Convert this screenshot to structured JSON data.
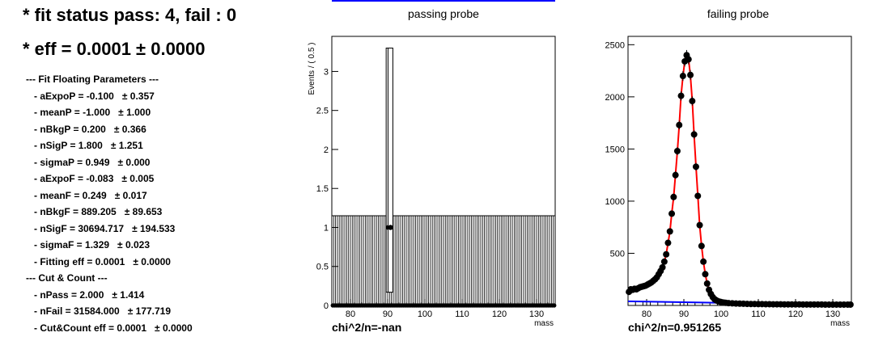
{
  "status_line": "* fit status pass: 4, fail : 0",
  "eff_line": "* eff = 0.0001  ± 0.0000",
  "fit_header": "--- Fit Floating Parameters ---",
  "fit_params": [
    {
      "label": "- aExpoP = -0.100",
      "err": "± 0.357"
    },
    {
      "label": "- meanP = -1.000",
      "err": "± 1.000"
    },
    {
      "label": "- nBkgP = 0.200",
      "err": "± 0.366"
    },
    {
      "label": "- nSigP = 1.800",
      "err": "± 1.251"
    },
    {
      "label": "- sigmaP = 0.949",
      "err": "± 0.000"
    },
    {
      "label": "- aExpoF = -0.083",
      "err": "± 0.005"
    },
    {
      "label": "- meanF = 0.249",
      "err": "± 0.017"
    },
    {
      "label": "- nBkgF = 889.205",
      "err": "± 89.653"
    },
    {
      "label": "- nSigF = 30694.717",
      "err": "± 194.533"
    },
    {
      "label": "- sigmaF = 1.329",
      "err": "± 0.023"
    },
    {
      "label": "- Fitting eff = 0.0001",
      "err": "± 0.0000"
    }
  ],
  "cc_header": "--- Cut & Count ---",
  "cc_params": [
    {
      "label": "- nPass = 2.000",
      "err": "± 1.414"
    },
    {
      "label": "- nFail = 31584.000",
      "err": "± 177.719"
    },
    {
      "label": "- Cut&Count eff = 0.0001",
      "err": "± 0.0000"
    }
  ],
  "chart_data": [
    {
      "type": "histogram",
      "title": "passing probe",
      "ylabel": "Events / ( 0.5 )",
      "xlabel": "mass",
      "chi_label": "chi^2/n=-nan",
      "xlim": [
        75,
        135
      ],
      "ylim": [
        0,
        3.45
      ],
      "x_ticks": [
        80,
        90,
        100,
        110,
        120,
        130
      ],
      "y_ticks": [
        0,
        0.5,
        1,
        1.5,
        2,
        2.5,
        3
      ],
      "y_tick_labels": [
        "0",
        "0.5",
        "1",
        "1.5",
        "2",
        "2.5",
        "3"
      ],
      "bin_width": 0.5,
      "band_level": 1.15,
      "points": [
        {
          "x": 90.25,
          "y": 1,
          "err_lo": 0.83,
          "err_hi": 2.3
        },
        {
          "x": 90.75,
          "y": 1,
          "err_lo": 0.83,
          "err_hi": 2.3
        }
      ],
      "zero_points": true
    },
    {
      "type": "histogram_fit",
      "title": "failing probe",
      "ylabel": "",
      "xlabel": "mass",
      "chi_label": "chi^2/n=0.951265",
      "xlim": [
        75,
        135
      ],
      "ylim": [
        0,
        2580
      ],
      "x_ticks": [
        80,
        90,
        100,
        110,
        120,
        130
      ],
      "y_ticks": [
        500,
        1000,
        1500,
        2000,
        2500
      ],
      "y_tick_labels": [
        "500",
        "1000",
        "1500",
        "2000",
        "2500"
      ],
      "points": [
        {
          "x": 75.25,
          "y": 130
        },
        {
          "x": 75.75,
          "y": 155
        },
        {
          "x": 76.25,
          "y": 150
        },
        {
          "x": 76.75,
          "y": 160
        },
        {
          "x": 77.25,
          "y": 155
        },
        {
          "x": 77.75,
          "y": 165
        },
        {
          "x": 78.25,
          "y": 175
        },
        {
          "x": 78.75,
          "y": 180
        },
        {
          "x": 79.25,
          "y": 185
        },
        {
          "x": 79.75,
          "y": 190
        },
        {
          "x": 80.25,
          "y": 200
        },
        {
          "x": 80.75,
          "y": 210
        },
        {
          "x": 81.25,
          "y": 220
        },
        {
          "x": 81.75,
          "y": 235
        },
        {
          "x": 82.25,
          "y": 250
        },
        {
          "x": 82.75,
          "y": 270
        },
        {
          "x": 83.25,
          "y": 300
        },
        {
          "x": 83.75,
          "y": 330
        },
        {
          "x": 84.25,
          "y": 365
        },
        {
          "x": 84.75,
          "y": 420
        },
        {
          "x": 85.25,
          "y": 490
        },
        {
          "x": 85.75,
          "y": 600
        },
        {
          "x": 86.25,
          "y": 710
        },
        {
          "x": 86.75,
          "y": 880
        },
        {
          "x": 87.25,
          "y": 1040
        },
        {
          "x": 87.75,
          "y": 1250
        },
        {
          "x": 88.25,
          "y": 1480
        },
        {
          "x": 88.75,
          "y": 1730
        },
        {
          "x": 89.25,
          "y": 2010
        },
        {
          "x": 89.75,
          "y": 2200
        },
        {
          "x": 90.25,
          "y": 2340
        },
        {
          "x": 90.75,
          "y": 2400
        },
        {
          "x": 91.25,
          "y": 2360
        },
        {
          "x": 91.75,
          "y": 2210
        },
        {
          "x": 92.25,
          "y": 1960
        },
        {
          "x": 92.75,
          "y": 1640
        },
        {
          "x": 93.25,
          "y": 1330
        },
        {
          "x": 93.75,
          "y": 1050
        },
        {
          "x": 94.25,
          "y": 770
        },
        {
          "x": 94.75,
          "y": 570
        },
        {
          "x": 95.25,
          "y": 420
        },
        {
          "x": 95.75,
          "y": 300
        },
        {
          "x": 96.25,
          "y": 210
        },
        {
          "x": 96.75,
          "y": 150
        },
        {
          "x": 97.25,
          "y": 110
        },
        {
          "x": 97.75,
          "y": 80
        },
        {
          "x": 98.25,
          "y": 60
        },
        {
          "x": 98.75,
          "y": 48
        },
        {
          "x": 99.25,
          "y": 40
        },
        {
          "x": 99.75,
          "y": 35
        },
        {
          "x": 100.25,
          "y": 30
        },
        {
          "x": 100.75,
          "y": 27
        },
        {
          "x": 101.25,
          "y": 25
        },
        {
          "x": 102,
          "y": 22
        },
        {
          "x": 103,
          "y": 20
        },
        {
          "x": 104,
          "y": 18
        },
        {
          "x": 105,
          "y": 17
        },
        {
          "x": 106,
          "y": 16
        },
        {
          "x": 107,
          "y": 15
        },
        {
          "x": 108,
          "y": 14
        },
        {
          "x": 109,
          "y": 14
        },
        {
          "x": 110,
          "y": 13
        },
        {
          "x": 111,
          "y": 13
        },
        {
          "x": 112,
          "y": 12
        },
        {
          "x": 113,
          "y": 12
        },
        {
          "x": 114,
          "y": 11
        },
        {
          "x": 115,
          "y": 11
        },
        {
          "x": 116,
          "y": 11
        },
        {
          "x": 117,
          "y": 10
        },
        {
          "x": 118,
          "y": 10
        },
        {
          "x": 119,
          "y": 10
        },
        {
          "x": 120,
          "y": 10
        },
        {
          "x": 121,
          "y": 10
        },
        {
          "x": 122,
          "y": 9
        },
        {
          "x": 123,
          "y": 9
        },
        {
          "x": 124,
          "y": 9
        },
        {
          "x": 125,
          "y": 9
        },
        {
          "x": 126,
          "y": 9
        },
        {
          "x": 127,
          "y": 9
        },
        {
          "x": 128,
          "y": 8
        },
        {
          "x": 129,
          "y": 8
        },
        {
          "x": 130,
          "y": 8
        },
        {
          "x": 131,
          "y": 8
        },
        {
          "x": 132,
          "y": 8
        },
        {
          "x": 133,
          "y": 8
        },
        {
          "x": 134,
          "y": 8
        },
        {
          "x": 134.75,
          "y": 8
        }
      ],
      "fit_color": "#ff0000",
      "background_color": "#0000ff",
      "background": {
        "x": [
          75,
          135
        ],
        "y": [
          40,
          4
        ]
      }
    }
  ],
  "colors": {
    "marker": "#000000",
    "fit": "#ff0000",
    "background": "#0000ff",
    "topbar": "#0000ff"
  }
}
